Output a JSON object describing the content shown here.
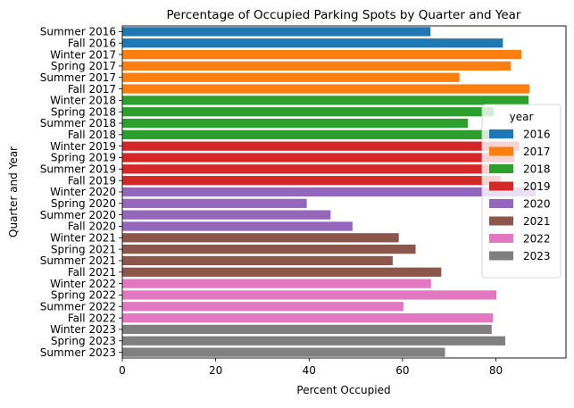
{
  "chart_data": {
    "type": "bar",
    "orientation": "horizontal",
    "title": "Percentage of Occupied Parking Spots by Quarter and Year",
    "xlabel": "Percent Occupied",
    "ylabel": "Quarter and Year",
    "xlim": [
      0,
      95
    ],
    "xticks": [
      0,
      20,
      40,
      60,
      80
    ],
    "grid": false,
    "legend_placement": "right",
    "legend_title": "year",
    "legend": [
      {
        "label": "2016",
        "color": "#1f77b4"
      },
      {
        "label": "2017",
        "color": "#ff7f0e"
      },
      {
        "label": "2018",
        "color": "#2ca02c"
      },
      {
        "label": "2019",
        "color": "#d62728"
      },
      {
        "label": "2020",
        "color": "#9467bd"
      },
      {
        "label": "2021",
        "color": "#8c564b"
      },
      {
        "label": "2022",
        "color": "#e377c2"
      },
      {
        "label": "2023",
        "color": "#7f7f7f"
      }
    ],
    "categories": [
      "Summer 2016",
      "Fall 2016",
      "Winter 2017",
      "Spring 2017",
      "Summer 2017",
      "Fall 2017",
      "Winter 2018",
      "Spring 2018",
      "Summer 2018",
      "Fall 2018",
      "Winter 2019",
      "Spring 2019",
      "Summer 2019",
      "Fall 2019",
      "Winter 2020",
      "Spring 2020",
      "Summer 2020",
      "Fall 2020",
      "Winter 2021",
      "Spring 2021",
      "Summer 2021",
      "Fall 2021",
      "Winter 2022",
      "Spring 2022",
      "Summer 2022",
      "Fall 2022",
      "Winter 2023",
      "Spring 2023",
      "Summer 2023"
    ],
    "years": [
      "2016",
      "2016",
      "2017",
      "2017",
      "2017",
      "2017",
      "2018",
      "2018",
      "2018",
      "2018",
      "2019",
      "2019",
      "2019",
      "2019",
      "2020",
      "2020",
      "2020",
      "2020",
      "2021",
      "2021",
      "2021",
      "2021",
      "2022",
      "2022",
      "2022",
      "2022",
      "2023",
      "2023",
      "2023"
    ],
    "values": [
      66,
      81.5,
      85.5,
      83.2,
      72.2,
      87.2,
      87,
      79.5,
      74,
      82,
      85,
      84,
      83,
      81,
      88.5,
      39.5,
      44.6,
      49.3,
      59.2,
      62.8,
      57.9,
      68.3,
      66.1,
      80.1,
      60.2,
      79.4,
      79.1,
      82,
      69.1
    ]
  }
}
